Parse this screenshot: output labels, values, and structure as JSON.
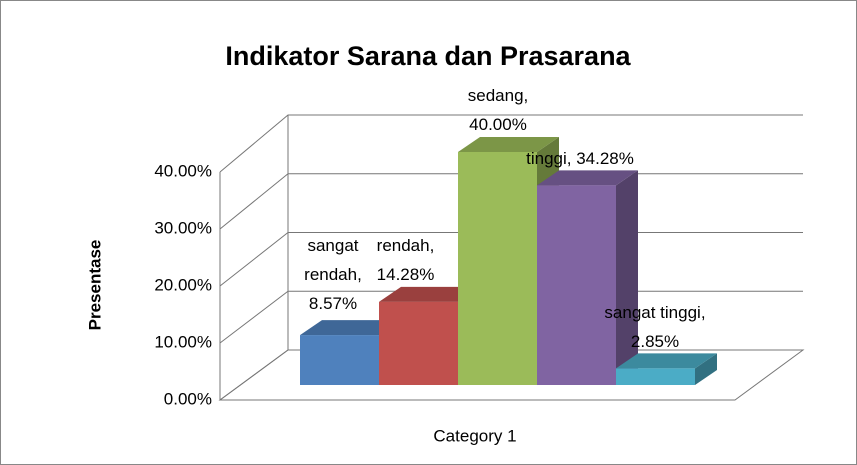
{
  "chart_data": {
    "type": "bar3d",
    "title": "Indikator Sarana dan Prasarana",
    "ylabel": "Presentase",
    "categories": [
      "Category 1"
    ],
    "series": [
      {
        "name": "sangat rendah",
        "color": "#4f81bd",
        "values": [
          8.57
        ],
        "value_labels": [
          "sangat rendah, 8.57%"
        ]
      },
      {
        "name": "rendah",
        "color": "#c0504d",
        "values": [
          14.28
        ],
        "value_labels": [
          "rendah, 14.28%"
        ]
      },
      {
        "name": "sedang",
        "color": "#9bbb59",
        "values": [
          40.0
        ],
        "value_labels": [
          "sedang, 40.00%"
        ]
      },
      {
        "name": "tinggi",
        "color": "#8064a2",
        "values": [
          34.28
        ],
        "value_labels": [
          "tinggi, 34.28%"
        ]
      },
      {
        "name": "sangat tinggi",
        "color": "#4bacc6",
        "values": [
          2.85
        ],
        "value_labels": [
          "sangat tinggi, 2.85%"
        ]
      }
    ],
    "ylim": [
      0,
      40
    ],
    "yticks": [
      {
        "value": 0,
        "label": "0.00%"
      },
      {
        "value": 10,
        "label": "10.00%"
      },
      {
        "value": 20,
        "label": "20.00%"
      },
      {
        "value": 30,
        "label": "30.00%"
      },
      {
        "value": 40,
        "label": "40.00%"
      }
    ],
    "grid": true
  }
}
